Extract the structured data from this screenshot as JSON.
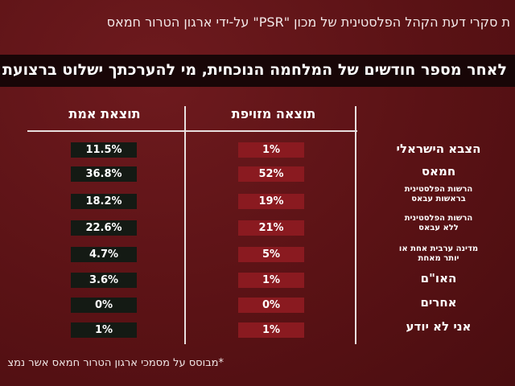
{
  "header": {
    "subtitle": "ת סקרי דעת הקהל הפלסטינית של מכון \"PSR\" על-ידי ארגון הטרור חמאס",
    "question": "לאחר מספר חודשים של המלחמה הנוכחית, מי להערכתך ישלוט ברצועת עזה?"
  },
  "columns": {
    "fake_label": "תוצאה מזויפת",
    "true_label": "תוצאת אמת"
  },
  "rows": [
    {
      "label": "הצבא הישראלי",
      "fake": "1%",
      "true": "11.5%"
    },
    {
      "label": "חמאס",
      "fake": "52%",
      "true": "36.8%"
    },
    {
      "label": "הרשות הפלסטינית בראשות עבאס",
      "fake": "19%",
      "true": "18.2%"
    },
    {
      "label": "הרשות הפלסטינית ללא עבאס",
      "fake": "21%",
      "true": "22.6%"
    },
    {
      "label": "מדינה ערבית אחת או יותר מאחת",
      "fake": "5%",
      "true": "4.7%"
    },
    {
      "label": "האו\"ם",
      "fake": "1%",
      "true": "3.6%"
    },
    {
      "label": "אחרים",
      "fake": "0%",
      "true": "0%"
    },
    {
      "label": "אני לא יודע",
      "fake": "1%",
      "true": "1%"
    }
  ],
  "footnote": "*מבוסס על מסמכי ארגון הטרור חמאס אשר נמצ",
  "colors": {
    "background": "#5e1316",
    "question_bar": "#180607",
    "fake_cell": "#8a1a20",
    "true_cell": "#141a14",
    "lines": "#e8dede"
  }
}
